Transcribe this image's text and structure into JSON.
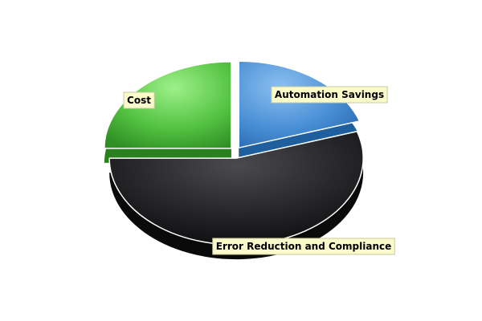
{
  "chart_data": {
    "type": "pie",
    "title": "",
    "legend": "none",
    "slices": [
      {
        "label": "Automation Savings",
        "value": 20,
        "color": "#4a90d9"
      },
      {
        "label": "Error Reduction and Compliance",
        "value": 55,
        "color": "#1c1c1e"
      },
      {
        "label": "Cost",
        "value": 25,
        "color": "#4cbf3c"
      }
    ],
    "start_angle_deg": 0,
    "direction": "clockwise",
    "style": "3d-exploded"
  }
}
